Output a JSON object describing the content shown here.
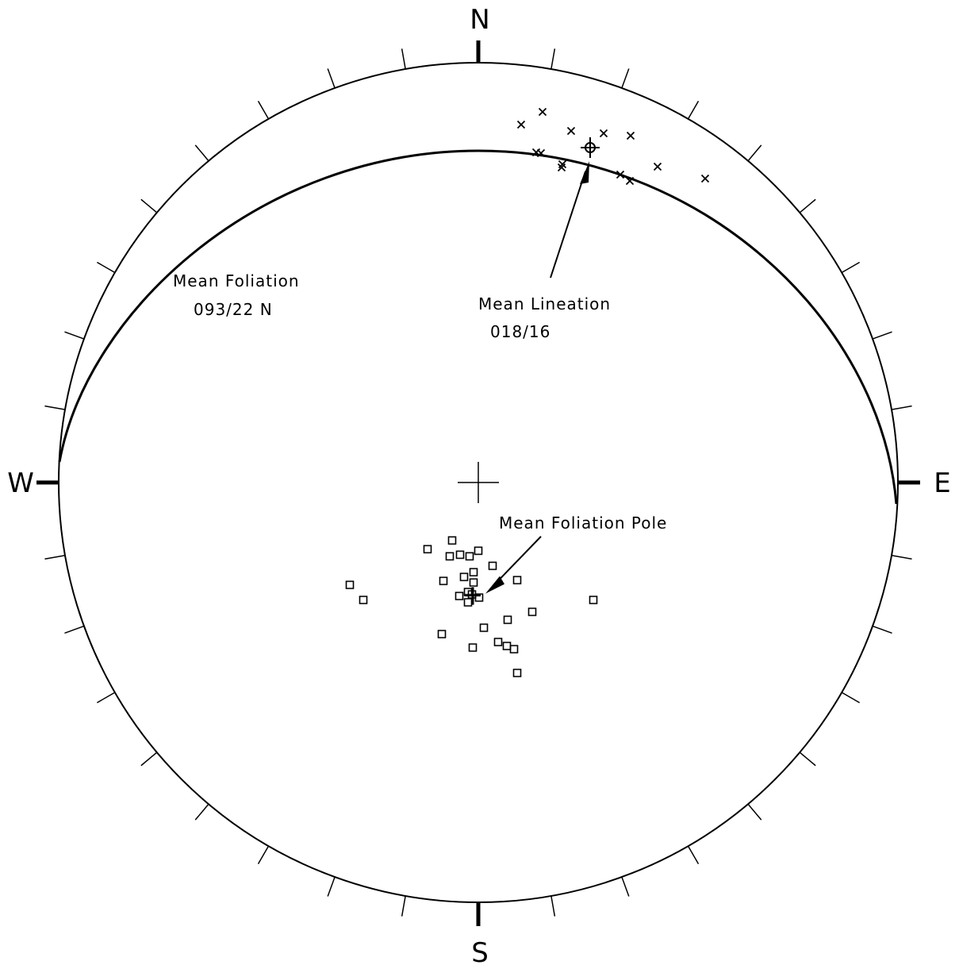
{
  "cardinals": {
    "north": "N",
    "east": "E",
    "south": "S",
    "west": "W"
  },
  "annotations": {
    "mean_foliation_title": "Mean Foliation",
    "mean_foliation_value": "093/22 N",
    "mean_lineation_title": "Mean Lineation",
    "mean_lineation_value": "018/16",
    "mean_pole_title": "Mean Foliation Pole"
  },
  "measurements": {
    "mean_foliation": {
      "strike": 93,
      "dip": 22
    },
    "mean_lineation": {
      "trend": 18,
      "plunge": 16
    }
  },
  "symbols": {
    "lineation_marker": "x-cross",
    "foliation_pole_marker": "open-square",
    "mean_marker": "circled-cross"
  },
  "colors": {
    "ink": "#000000",
    "background": "#ffffff"
  }
}
